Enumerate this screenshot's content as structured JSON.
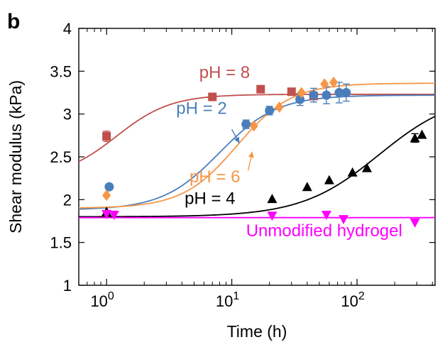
{
  "panel_label": "b",
  "chart_data": {
    "type": "scatter",
    "xlabel": "Time (h)",
    "ylabel": "Shear modulus (kPa)",
    "x_scale": "log",
    "xlim": [
      0.6,
      420
    ],
    "ylim": [
      1,
      4
    ],
    "x_ticks": [
      {
        "value": 1,
        "base": "10",
        "exp": "0"
      },
      {
        "value": 10,
        "base": "10",
        "exp": "1"
      },
      {
        "value": 100,
        "base": "10",
        "exp": "2"
      }
    ],
    "y_ticks": [
      {
        "value": 1,
        "label": "1"
      },
      {
        "value": 1.5,
        "label": "1.5"
      },
      {
        "value": 2,
        "label": "2"
      },
      {
        "value": 2.5,
        "label": "2.5"
      },
      {
        "value": 3,
        "label": "3"
      },
      {
        "value": 3.5,
        "label": "3.5"
      },
      {
        "value": 4,
        "label": "4"
      }
    ],
    "grid": false,
    "series": [
      {
        "name": "pH = 8",
        "color": "#c0504d",
        "marker": "square",
        "points": [
          {
            "x": 1.0,
            "y": 2.74,
            "err": 0.06
          },
          {
            "x": 7,
            "y": 3.2
          },
          {
            "x": 17,
            "y": 3.29
          },
          {
            "x": 30,
            "y": 3.26
          },
          {
            "x": 45,
            "y": 3.21
          }
        ],
        "fit": {
          "model": "sigmoid",
          "y0": 2.25,
          "y1": 3.23,
          "t0": 1.2,
          "n": 2.0
        },
        "label_pos": {
          "x": 5.5,
          "y": 3.42
        }
      },
      {
        "name": "pH = 2",
        "color": "#4a7ebb",
        "marker": "circle",
        "points": [
          {
            "x": 1.05,
            "y": 2.15
          },
          {
            "x": 13,
            "y": 2.88,
            "err": 0.05
          },
          {
            "x": 20,
            "y": 3.04,
            "err": 0.05
          },
          {
            "x": 35,
            "y": 3.17,
            "err": 0.07
          },
          {
            "x": 45,
            "y": 3.22,
            "err": 0.08
          },
          {
            "x": 57,
            "y": 3.22,
            "err": 0.1
          },
          {
            "x": 72,
            "y": 3.25,
            "err": 0.12
          },
          {
            "x": 82,
            "y": 3.25,
            "err": 0.1
          }
        ],
        "fit": {
          "model": "sigmoid",
          "y0": 1.88,
          "y1": 3.22,
          "t0": 8.0,
          "n": 1.9
        },
        "label_pos": {
          "x": 3.6,
          "y": 3.0
        }
      },
      {
        "name": "pH = 6",
        "color": "#f79646",
        "marker": "diamond",
        "points": [
          {
            "x": 1.0,
            "y": 2.05
          },
          {
            "x": 15,
            "y": 2.86
          },
          {
            "x": 24,
            "y": 3.08
          },
          {
            "x": 36,
            "y": 3.25
          },
          {
            "x": 55,
            "y": 3.35
          },
          {
            "x": 65,
            "y": 3.37
          }
        ],
        "fit": {
          "model": "sigmoid",
          "y0": 1.9,
          "y1": 3.36,
          "t0": 11,
          "n": 2.0
        },
        "label_pos": {
          "x": 4.6,
          "y": 2.2
        }
      },
      {
        "name": "pH = 4",
        "color": "#000000",
        "marker": "triangle-up",
        "points": [
          {
            "x": 1.0,
            "y": 1.86
          },
          {
            "x": 21,
            "y": 2.01
          },
          {
            "x": 40,
            "y": 2.15
          },
          {
            "x": 60,
            "y": 2.23
          },
          {
            "x": 92,
            "y": 2.32
          },
          {
            "x": 120,
            "y": 2.37
          },
          {
            "x": 290,
            "y": 2.72,
            "err": 0.05
          },
          {
            "x": 330,
            "y": 2.76
          }
        ],
        "fit": {
          "model": "sigmoid",
          "y0": 1.8,
          "y1": 3.25,
          "t0": 150,
          "n": 1.4
        },
        "label_pos": {
          "x": 4.2,
          "y": 1.95
        }
      },
      {
        "name": "Unmodified hydrogel",
        "color": "#ff00ff",
        "marker": "triangle-down",
        "points": [
          {
            "x": 1.0,
            "y": 1.83
          },
          {
            "x": 1.15,
            "y": 1.82
          },
          {
            "x": 21,
            "y": 1.81
          },
          {
            "x": 57,
            "y": 1.82
          },
          {
            "x": 78,
            "y": 1.77
          },
          {
            "x": 290,
            "y": 1.73
          }
        ],
        "fit": {
          "model": "flat",
          "y": 1.79
        },
        "label_pos": {
          "x": 13,
          "y": 1.57
        }
      }
    ],
    "annotations": [
      {
        "text": "→",
        "color": "#4a7ebb",
        "from": {
          "x": 10,
          "y": 2.82
        },
        "to": {
          "x": 11.5,
          "y": 2.66
        }
      },
      {
        "text": "→",
        "color": "#f79646",
        "from": {
          "x": 13.5,
          "y": 2.34
        },
        "to": {
          "x": 14.6,
          "y": 2.56
        }
      }
    ]
  }
}
